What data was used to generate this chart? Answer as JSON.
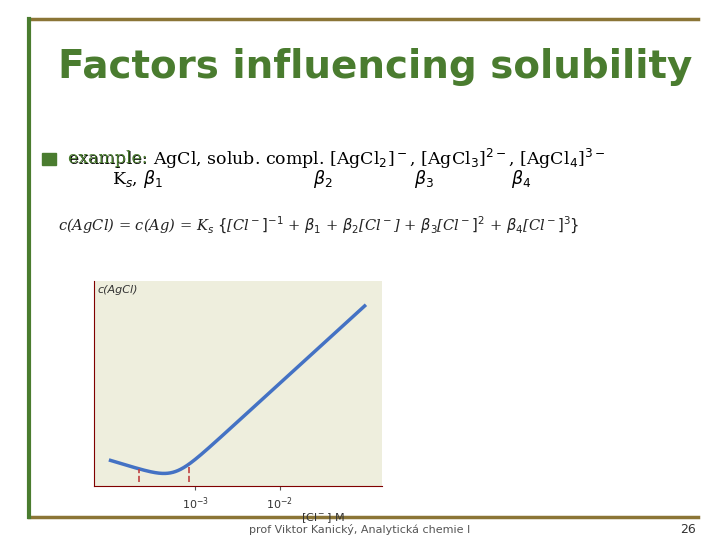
{
  "title": "Factors influencing solubility",
  "title_color": "#4a7c2f",
  "title_fontsize": 28,
  "background_color": "#ffffff",
  "border_color_top": "#8b7536",
  "border_color_left": "#4a7c2f",
  "bullet_color": "#4a7c2f",
  "bullet_text_color": "#4a7c2f",
  "footer_text": "prof Viktor Kanický, Analytická chemie I",
  "footer_page": "26",
  "curve_color": "#4472c4",
  "plot_bg_color": "#eeeedd",
  "dashed_line_color": "#c04040"
}
